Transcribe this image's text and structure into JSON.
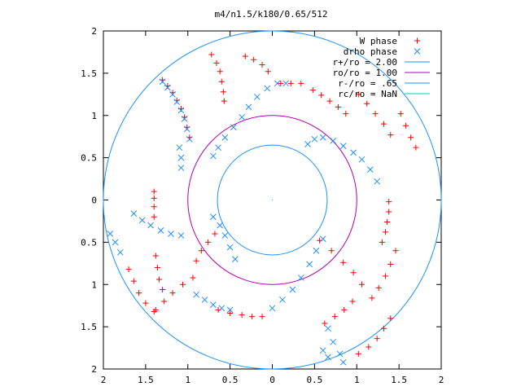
{
  "chart_data": {
    "type": "scatter",
    "title": "m4/n1.5/k180/0.65/512",
    "xlabel": "",
    "ylabel": "",
    "xlim": [
      -2,
      2
    ],
    "ylim": [
      -2,
      2
    ],
    "x_ticks": [
      -2,
      -1.5,
      -1,
      -0.5,
      0,
      0.5,
      1,
      1.5,
      2
    ],
    "y_ticks": [
      -2,
      -1.5,
      -1,
      -0.5,
      0,
      0.5,
      1,
      1.5,
      2
    ],
    "x_tick_labels": [
      "2",
      "1.5",
      "1",
      "0.5",
      "0",
      "0.5",
      "1",
      "1.5",
      "2"
    ],
    "y_tick_labels": [
      "2",
      "1.5",
      "1",
      "0.5",
      "0",
      "0.5",
      "1",
      "1.5",
      "2"
    ],
    "grid": false,
    "legend_position": "top-right",
    "series": [
      {
        "name": "W phase",
        "marker": "+",
        "color": "#ff0000",
        "points": [
          [
            -1.3,
            1.42
          ],
          [
            -1.24,
            1.35
          ],
          [
            -1.18,
            1.27
          ],
          [
            -1.13,
            1.18
          ],
          [
            -1.08,
            1.08
          ],
          [
            -1.04,
            0.98
          ],
          [
            -1.01,
            0.86
          ],
          [
            -0.98,
            0.74
          ],
          [
            -0.72,
            1.72
          ],
          [
            -0.66,
            1.62
          ],
          [
            -0.62,
            1.52
          ],
          [
            -0.6,
            1.4
          ],
          [
            -0.58,
            1.28
          ],
          [
            -0.57,
            1.17
          ],
          [
            -0.32,
            1.7
          ],
          [
            -0.22,
            1.66
          ],
          [
            -0.12,
            1.6
          ],
          [
            -0.05,
            1.52
          ],
          [
            0.1,
            1.38
          ],
          [
            0.22,
            1.38
          ],
          [
            0.34,
            1.38
          ],
          [
            0.48,
            1.3
          ],
          [
            0.58,
            1.24
          ],
          [
            0.68,
            1.17
          ],
          [
            0.78,
            1.1
          ],
          [
            0.87,
            1.02
          ],
          [
            1.02,
            1.25
          ],
          [
            1.12,
            1.14
          ],
          [
            1.22,
            1.02
          ],
          [
            1.32,
            0.9
          ],
          [
            1.4,
            0.77
          ],
          [
            1.52,
            1.02
          ],
          [
            1.58,
            0.88
          ],
          [
            1.64,
            0.74
          ],
          [
            1.7,
            0.62
          ],
          [
            1.38,
            -0.02
          ],
          [
            1.38,
            -0.14
          ],
          [
            1.36,
            -0.26
          ],
          [
            1.34,
            -0.38
          ],
          [
            1.3,
            -0.5
          ],
          [
            1.46,
            -0.6
          ],
          [
            1.4,
            -0.76
          ],
          [
            1.34,
            -0.9
          ],
          [
            1.26,
            -1.04
          ],
          [
            1.18,
            -1.16
          ],
          [
            0.95,
            -1.2
          ],
          [
            0.85,
            -1.3
          ],
          [
            0.74,
            -1.38
          ],
          [
            0.62,
            -1.46
          ],
          [
            1.4,
            -1.4
          ],
          [
            1.32,
            -1.52
          ],
          [
            1.24,
            -1.64
          ],
          [
            1.14,
            -1.74
          ],
          [
            1.02,
            -1.82
          ],
          [
            0.56,
            -0.48
          ],
          [
            0.7,
            -0.6
          ],
          [
            0.84,
            -0.74
          ],
          [
            0.96,
            -0.86
          ],
          [
            1.06,
            -1.0
          ],
          [
            -0.12,
            -1.38
          ],
          [
            -0.24,
            -1.38
          ],
          [
            -0.36,
            -1.36
          ],
          [
            -0.5,
            -1.34
          ],
          [
            -0.64,
            -1.3
          ],
          [
            -1.38,
            -1.3
          ],
          [
            -1.28,
            -1.2
          ],
          [
            -1.18,
            -1.1
          ],
          [
            -1.06,
            -1.0
          ],
          [
            -0.94,
            -0.92
          ],
          [
            -1.7,
            -0.82
          ],
          [
            -1.64,
            -0.96
          ],
          [
            -1.58,
            -1.1
          ],
          [
            -1.5,
            -1.22
          ],
          [
            -1.4,
            -1.32
          ],
          [
            -1.38,
            -0.66
          ],
          [
            -1.36,
            -0.8
          ],
          [
            -1.34,
            -0.94
          ],
          [
            -1.3,
            -1.06
          ],
          [
            -1.4,
            0.1
          ],
          [
            -1.4,
            0.02
          ],
          [
            -1.4,
            -0.08
          ],
          [
            -1.4,
            -0.2
          ],
          [
            -0.68,
            -0.4
          ],
          [
            -0.76,
            -0.5
          ],
          [
            -0.84,
            -0.6
          ],
          [
            -0.9,
            -0.72
          ]
        ]
      },
      {
        "name": "drho phase",
        "marker": "x",
        "color": "#1e90ff",
        "points": [
          [
            -1.3,
            1.4
          ],
          [
            -1.24,
            1.33
          ],
          [
            -1.18,
            1.25
          ],
          [
            -1.13,
            1.16
          ],
          [
            -1.08,
            1.06
          ],
          [
            -1.04,
            0.96
          ],
          [
            -1.01,
            0.84
          ],
          [
            -0.98,
            0.72
          ],
          [
            -0.7,
            0.52
          ],
          [
            -0.64,
            0.62
          ],
          [
            -0.56,
            0.74
          ],
          [
            -0.46,
            0.86
          ],
          [
            -0.36,
            0.98
          ],
          [
            -0.28,
            1.1
          ],
          [
            -0.18,
            1.22
          ],
          [
            -0.06,
            1.32
          ],
          [
            0.06,
            1.38
          ],
          [
            0.16,
            1.38
          ],
          [
            0.42,
            0.66
          ],
          [
            0.5,
            0.72
          ],
          [
            0.6,
            0.74
          ],
          [
            0.72,
            0.7
          ],
          [
            0.84,
            0.64
          ],
          [
            0.96,
            0.56
          ],
          [
            1.06,
            0.48
          ],
          [
            1.16,
            0.36
          ],
          [
            1.24,
            0.22
          ],
          [
            -1.64,
            -0.16
          ],
          [
            -1.54,
            -0.24
          ],
          [
            -1.44,
            -0.3
          ],
          [
            -1.32,
            -0.36
          ],
          [
            -1.2,
            -0.4
          ],
          [
            -1.08,
            -0.42
          ],
          [
            -0.7,
            -0.2
          ],
          [
            -0.62,
            -0.3
          ],
          [
            -0.56,
            -0.42
          ],
          [
            -0.5,
            -0.56
          ],
          [
            -0.44,
            -0.7
          ],
          [
            0.6,
            -0.46
          ],
          [
            0.52,
            -0.6
          ],
          [
            0.44,
            -0.76
          ],
          [
            0.34,
            -0.92
          ],
          [
            0.24,
            -1.06
          ],
          [
            0.12,
            -1.18
          ],
          [
            0.0,
            -1.28
          ],
          [
            0.66,
            -1.52
          ],
          [
            0.72,
            -1.68
          ],
          [
            0.8,
            -1.82
          ],
          [
            0.84,
            -1.92
          ],
          [
            0.6,
            -1.78
          ],
          [
            0.66,
            -1.86
          ],
          [
            -0.9,
            -1.12
          ],
          [
            -0.8,
            -1.18
          ],
          [
            -0.7,
            -1.24
          ],
          [
            -0.6,
            -1.28
          ],
          [
            -0.5,
            -1.3
          ],
          [
            -1.1,
            0.62
          ],
          [
            -1.08,
            0.5
          ],
          [
            -1.08,
            0.38
          ],
          [
            -1.92,
            -0.4
          ],
          [
            -1.86,
            -0.5
          ],
          [
            -1.8,
            -0.62
          ]
        ]
      },
      {
        "name": "r+/ro = 2.00",
        "type": "circle",
        "radius": 2.0,
        "color": "#1e90ff"
      },
      {
        "name": "ro/ro = 1.00",
        "type": "circle",
        "radius": 1.0,
        "color": "#b000b0"
      },
      {
        "name": "r-/ro = .65",
        "type": "circle",
        "radius": 0.65,
        "color": "#1e90ff"
      },
      {
        "name": "rc/ro = NaN",
        "type": "circle",
        "radius": null,
        "color": "#00c8c8"
      }
    ]
  }
}
